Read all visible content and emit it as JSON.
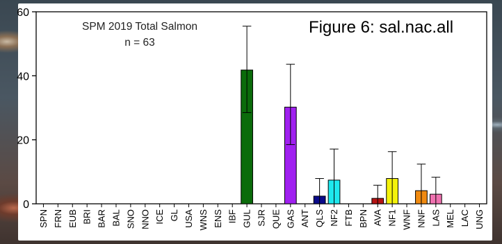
{
  "chart_data": {
    "type": "bar",
    "title": "SPM 2019 Total Salmon",
    "subtitle": "n = 63",
    "annotation": "Figure 6: sal.nac.all",
    "xlabel": "",
    "ylabel": "",
    "ylim": [
      0,
      60
    ],
    "yticks": [
      0,
      20,
      40,
      60
    ],
    "grid": false,
    "error_bars": true,
    "categories": [
      "SPN",
      "FRN",
      "EUB",
      "BRI",
      "BAR",
      "BAL",
      "SNO",
      "NNO",
      "ICE",
      "GL",
      "USA",
      "WNS",
      "ENS",
      "IBF",
      "GUL",
      "SJR",
      "QUE",
      "GAS",
      "ANT",
      "QLS",
      "NF2",
      "FTB",
      "BPN",
      "AVA",
      "NF1",
      "WNF",
      "NNF",
      "LAS",
      "MEL",
      "LAC",
      "UNG"
    ],
    "values": [
      0,
      0,
      0,
      0,
      0,
      0,
      0,
      0,
      0,
      0,
      0,
      0,
      0,
      0,
      41.8,
      0,
      0,
      30.2,
      0,
      2.4,
      7.4,
      0,
      0,
      1.7,
      7.9,
      0,
      4.1,
      3.0,
      0,
      0,
      0
    ],
    "error_low": [
      0,
      0,
      0,
      0,
      0,
      0,
      0,
      0,
      0,
      0,
      0,
      0,
      0,
      0,
      28.5,
      0,
      0,
      18.5,
      0,
      0,
      0,
      0,
      0,
      0,
      0,
      0,
      0,
      0,
      0,
      0,
      0
    ],
    "error_high": [
      0,
      0,
      0,
      0,
      0,
      0,
      0,
      0,
      0,
      0,
      0,
      0,
      0,
      0,
      55.5,
      0,
      0,
      43.6,
      0,
      7.9,
      17.1,
      0,
      0,
      5.8,
      16.3,
      0,
      12.4,
      8.3,
      0,
      0,
      0
    ],
    "colors": [
      "#000000",
      "#000000",
      "#000000",
      "#000000",
      "#000000",
      "#000000",
      "#000000",
      "#000000",
      "#000000",
      "#000000",
      "#000000",
      "#000000",
      "#000000",
      "#000000",
      "#0b6b0b",
      "#000000",
      "#000000",
      "#a020f0",
      "#000000",
      "#0a0a8a",
      "#1ee8ee",
      "#000000",
      "#000000",
      "#b51414",
      "#f4f20a",
      "#000000",
      "#f08a10",
      "#f072b0",
      "#000000",
      "#000000",
      "#000000"
    ]
  }
}
